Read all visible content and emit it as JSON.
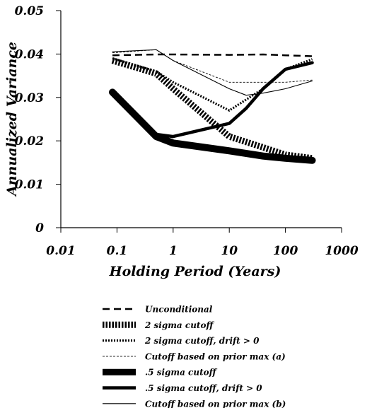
{
  "chart_data": {
    "type": "line",
    "title": "",
    "xlabel": "Holding Period (Years)",
    "ylabel": "Annualized Variance",
    "xscale": "log",
    "xlim": [
      0.01,
      1000
    ],
    "ylim": [
      0,
      0.05
    ],
    "xticks": [
      {
        "value": 0.01,
        "label": "0.01"
      },
      {
        "value": 0.1,
        "label": "0.1"
      },
      {
        "value": 1,
        "label": "1"
      },
      {
        "value": 10,
        "label": "10"
      },
      {
        "value": 100,
        "label": "100"
      },
      {
        "value": 1000,
        "label": "1000"
      }
    ],
    "yticks": [
      {
        "value": 0,
        "label": "0"
      },
      {
        "value": 0.01,
        "label": "0.01"
      },
      {
        "value": 0.02,
        "label": "0.02"
      },
      {
        "value": 0.03,
        "label": "0.03"
      },
      {
        "value": 0.04,
        "label": "0.04"
      },
      {
        "value": 0.05,
        "label": "0.05"
      }
    ],
    "grid": false,
    "legend_position": "below",
    "series": [
      {
        "name": "Unconditional",
        "style": "dashed-medium",
        "x": [
          0.083,
          0.5,
          1,
          10,
          40,
          100,
          300
        ],
        "y": [
          0.0397,
          0.0399,
          0.0399,
          0.0398,
          0.0399,
          0.0397,
          0.0395
        ]
      },
      {
        "name": "2 sigma cutoff",
        "style": "dotted-thick",
        "x": [
          0.083,
          0.5,
          1,
          10,
          40,
          100,
          300
        ],
        "y": [
          0.0385,
          0.0355,
          0.032,
          0.021,
          0.0185,
          0.0168,
          0.016
        ]
      },
      {
        "name": "2 sigma cutoff, drift > 0",
        "style": "dotted-medium",
        "x": [
          0.083,
          0.5,
          1,
          10,
          40,
          100,
          300
        ],
        "y": [
          0.039,
          0.036,
          0.0335,
          0.027,
          0.032,
          0.0365,
          0.0388
        ]
      },
      {
        "name": "Cutoff based on prior max (a)",
        "style": "dashed-thin",
        "x": [
          0.083,
          0.5,
          1,
          10,
          40,
          100,
          300
        ],
        "y": [
          0.0403,
          0.041,
          0.0385,
          0.0335,
          0.0335,
          0.0335,
          0.034
        ]
      },
      {
        "name": ".5 sigma cutoff",
        "style": "solid-thick",
        "x": [
          0.083,
          0.5,
          1,
          10,
          40,
          100,
          300
        ],
        "y": [
          0.0312,
          0.021,
          0.0195,
          0.0177,
          0.0165,
          0.016,
          0.0155
        ]
      },
      {
        "name": ".5 sigma cutoff, drift > 0",
        "style": "solid-medium",
        "x": [
          0.5,
          1,
          10,
          20,
          40,
          100,
          300
        ],
        "y": [
          0.0215,
          0.021,
          0.024,
          0.0275,
          0.032,
          0.0365,
          0.038
        ]
      },
      {
        "name": "Cutoff based on prior max (b)",
        "style": "solid-thin",
        "x": [
          0.083,
          0.5,
          1,
          10,
          20,
          40,
          100,
          300
        ],
        "y": [
          0.0405,
          0.041,
          0.0385,
          0.032,
          0.0305,
          0.031,
          0.032,
          0.0338
        ]
      }
    ]
  }
}
